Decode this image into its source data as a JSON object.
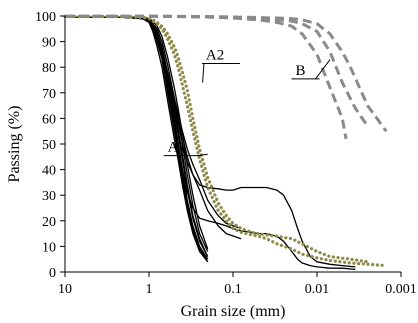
{
  "chart_data": {
    "type": "line",
    "title": "",
    "xlabel": "Grain size (mm)",
    "ylabel": "Passing (%)",
    "x_scale": "log",
    "x_reversed": true,
    "xlim": [
      10,
      0.001
    ],
    "ylim": [
      0,
      100
    ],
    "x_ticks": [
      10,
      1,
      0.1,
      0.01,
      0.001
    ],
    "x_tick_labels": [
      "10",
      "1",
      "0.1",
      "0.01",
      "0.001"
    ],
    "y_ticks": [
      0,
      10,
      20,
      30,
      40,
      50,
      60,
      70,
      80,
      90,
      100
    ],
    "y_tick_labels": [
      "0",
      "10",
      "20",
      "30",
      "40",
      "50",
      "60",
      "70",
      "80",
      "90",
      "100"
    ],
    "grid": false,
    "legend": "none",
    "colors": {
      "a1": "#000000",
      "a2": "#8e8a4a",
      "b": "#8a8a8a"
    },
    "annotations": [
      {
        "text": "A1",
        "x": 0.2,
        "y": 46,
        "tx": 0.6,
        "ty": 47
      },
      {
        "text": "A2",
        "x": 0.23,
        "y": 74,
        "tx": 0.21,
        "ty": 83
      },
      {
        "text": "B",
        "x": 0.007,
        "y": 83,
        "tx": 0.018,
        "ty": 77
      }
    ],
    "series": [
      {
        "group": "A1",
        "style": "solid",
        "x": [
          10,
          2,
          1.2,
          1,
          0.9,
          0.8,
          0.7,
          0.6,
          0.5,
          0.45,
          0.4,
          0.35,
          0.3,
          0.25,
          0.2
        ],
        "y": [
          99.5,
          99.5,
          99,
          98,
          96,
          92,
          85,
          73,
          58,
          50,
          40,
          28,
          18,
          10,
          5
        ]
      },
      {
        "group": "A1",
        "style": "solid",
        "x": [
          10,
          2,
          1.2,
          1,
          0.9,
          0.8,
          0.7,
          0.6,
          0.5,
          0.45,
          0.4,
          0.35,
          0.3,
          0.25,
          0.2
        ],
        "y": [
          99.5,
          99.5,
          99,
          98.5,
          97,
          94,
          88,
          78,
          64,
          56,
          46,
          34,
          22,
          13,
          6
        ]
      },
      {
        "group": "A1",
        "style": "solid",
        "x": [
          10,
          2,
          1.2,
          1,
          0.9,
          0.8,
          0.7,
          0.6,
          0.5,
          0.45,
          0.4,
          0.35,
          0.3,
          0.25,
          0.2
        ],
        "y": [
          99.5,
          99.5,
          99,
          98,
          95,
          90,
          83,
          70,
          55,
          46,
          36,
          25,
          16,
          9,
          5
        ]
      },
      {
        "group": "A1",
        "style": "solid",
        "x": [
          10,
          2,
          1.2,
          1,
          0.9,
          0.8,
          0.7,
          0.6,
          0.5,
          0.45,
          0.4,
          0.35,
          0.3,
          0.25,
          0.2
        ],
        "y": [
          99.5,
          99.5,
          99.5,
          99,
          97,
          95,
          90,
          81,
          68,
          60,
          50,
          38,
          26,
          15,
          8
        ]
      },
      {
        "group": "A1",
        "style": "solid",
        "x": [
          10,
          2,
          1.2,
          1,
          0.9,
          0.8,
          0.7,
          0.6,
          0.5,
          0.45,
          0.4,
          0.35,
          0.3,
          0.25,
          0.2
        ],
        "y": [
          99.5,
          99.5,
          99,
          97.5,
          94,
          88,
          80,
          67,
          52,
          44,
          34,
          24,
          15,
          8,
          4
        ]
      },
      {
        "group": "A1",
        "style": "solid",
        "x": [
          10,
          2,
          1.2,
          1,
          0.9,
          0.8,
          0.7,
          0.6,
          0.5,
          0.45,
          0.4,
          0.35,
          0.3,
          0.25,
          0.2
        ],
        "y": [
          99.5,
          99.5,
          99.5,
          99,
          98,
          96,
          92,
          84,
          72,
          64,
          54,
          42,
          30,
          18,
          9
        ]
      },
      {
        "group": "A1",
        "style": "solid",
        "x": [
          10,
          2,
          1.2,
          1,
          0.9,
          0.8,
          0.7,
          0.6,
          0.5,
          0.45,
          0.4,
          0.35,
          0.3,
          0.25,
          0.2
        ],
        "y": [
          99.5,
          99.5,
          99,
          98,
          96,
          91,
          84,
          72,
          57,
          48,
          38,
          27,
          17,
          9,
          4
        ]
      },
      {
        "group": "A1",
        "style": "solid",
        "x": [
          10,
          2,
          1.2,
          1,
          0.9,
          0.8,
          0.7,
          0.6,
          0.5,
          0.45,
          0.4,
          0.35,
          0.3,
          0.25,
          0.2
        ],
        "y": [
          99.5,
          99.5,
          99,
          98.5,
          97,
          93,
          87,
          76,
          62,
          54,
          44,
          32,
          21,
          12,
          6
        ]
      },
      {
        "group": "A1",
        "style": "solid",
        "x": [
          10,
          2,
          1.2,
          1,
          0.9,
          0.8,
          0.7,
          0.6,
          0.5,
          0.45,
          0.4,
          0.35,
          0.3,
          0.25,
          0.2,
          0.15,
          0.12,
          0.08
        ],
        "y": [
          99.5,
          99.5,
          99,
          98,
          96,
          92,
          86,
          77,
          66,
          60,
          53,
          45,
          38,
          32,
          24,
          18,
          15,
          13
        ]
      },
      {
        "group": "A1",
        "style": "solid",
        "x": [
          10,
          2,
          1.2,
          1,
          0.9,
          0.8,
          0.7,
          0.6,
          0.5,
          0.45,
          0.4,
          0.35,
          0.3,
          0.25,
          0.2,
          0.15,
          0.12,
          0.08
        ],
        "y": [
          99.5,
          99.5,
          99,
          98,
          96,
          92,
          86,
          78,
          68,
          62,
          55,
          48,
          42,
          36,
          28,
          22,
          19,
          17
        ]
      },
      {
        "group": "A1",
        "style": "solid",
        "x": [
          10,
          2,
          1.2,
          1,
          0.9,
          0.8,
          0.7,
          0.6,
          0.5,
          0.4,
          0.35,
          0.3,
          0.25,
          0.2,
          0.15,
          0.12,
          0.1,
          0.08,
          0.06,
          0.05,
          0.04,
          0.03,
          0.025,
          0.02,
          0.017,
          0.015,
          0.012,
          0.01,
          0.007,
          0.005,
          0.0035
        ],
        "y": [
          99.5,
          99.5,
          99,
          98,
          96,
          92,
          86,
          78,
          66,
          50,
          43,
          38,
          34,
          33,
          32.5,
          32,
          32,
          33,
          33,
          33,
          33,
          32,
          30,
          24,
          17,
          12,
          6,
          4,
          3,
          2.5,
          2
        ]
      },
      {
        "group": "A1",
        "style": "solid",
        "x": [
          10,
          2,
          1.2,
          1,
          0.9,
          0.8,
          0.7,
          0.6,
          0.5,
          0.4,
          0.35,
          0.3,
          0.25,
          0.2,
          0.15,
          0.12,
          0.1,
          0.08,
          0.06,
          0.05,
          0.04,
          0.03,
          0.025,
          0.02,
          0.017,
          0.015,
          0.012,
          0.01,
          0.007,
          0.005,
          0.0035
        ],
        "y": [
          99.5,
          99.5,
          99,
          98,
          96,
          92,
          85,
          75,
          60,
          40,
          31,
          25,
          21,
          20,
          19,
          18,
          17,
          16,
          15.5,
          15,
          15,
          14,
          12,
          8,
          5,
          3.5,
          2.5,
          2,
          1.5,
          1.5,
          1
        ]
      },
      {
        "group": "A2",
        "style": "dotted",
        "x": [
          10,
          2,
          1.2,
          1,
          0.9,
          0.8,
          0.7,
          0.6,
          0.5,
          0.45,
          0.4,
          0.35,
          0.3,
          0.25,
          0.2,
          0.15,
          0.12,
          0.1,
          0.08,
          0.06,
          0.05,
          0.04,
          0.03,
          0.02,
          0.015,
          0.01,
          0.007,
          0.004,
          0.0025
        ],
        "y": [
          99.8,
          99.8,
          99.5,
          99,
          98.5,
          97.5,
          96,
          93,
          88,
          84,
          78,
          71,
          60,
          48,
          37,
          27,
          22,
          19,
          17,
          15.5,
          15,
          14.5,
          14,
          13,
          11,
          8,
          6,
          5,
          4
        ]
      },
      {
        "group": "A2",
        "style": "dotted",
        "x": [
          10,
          2,
          1.2,
          1,
          0.9,
          0.8,
          0.7,
          0.6,
          0.5,
          0.45,
          0.4,
          0.35,
          0.3,
          0.25,
          0.2,
          0.15,
          0.12,
          0.1,
          0.08,
          0.06,
          0.05,
          0.04,
          0.03,
          0.02,
          0.015,
          0.01,
          0.007,
          0.004,
          0.0015
        ],
        "y": [
          99.8,
          99.8,
          99.5,
          99,
          98,
          97,
          95,
          91,
          85,
          80,
          73,
          65,
          55,
          44,
          33,
          24,
          20,
          17,
          15.5,
          14.5,
          14,
          13,
          11,
          9,
          7,
          5.5,
          4.5,
          3.5,
          2.5
        ]
      },
      {
        "group": "B",
        "style": "dashed",
        "x": [
          10,
          1,
          0.5,
          0.2,
          0.1,
          0.05,
          0.03,
          0.02,
          0.015,
          0.01,
          0.007,
          0.005,
          0.0045
        ],
        "y": [
          99.9,
          99.9,
          99.8,
          99.6,
          99.2,
          98.5,
          97.5,
          96,
          93,
          85,
          72,
          60,
          52
        ]
      },
      {
        "group": "B",
        "style": "dashed",
        "x": [
          10,
          1,
          0.5,
          0.2,
          0.1,
          0.05,
          0.03,
          0.02,
          0.015,
          0.01,
          0.007,
          0.005,
          0.0035,
          0.0025
        ],
        "y": [
          99.9,
          99.9,
          99.8,
          99.6,
          99.3,
          99,
          98.5,
          98,
          97,
          94,
          86,
          74,
          64,
          57
        ]
      },
      {
        "group": "B",
        "style": "dashed",
        "x": [
          10,
          1,
          0.5,
          0.2,
          0.1,
          0.05,
          0.03,
          0.02,
          0.015,
          0.01,
          0.007,
          0.005,
          0.004,
          0.0025,
          0.0015
        ],
        "y": [
          99.9,
          99.9,
          99.9,
          99.8,
          99.6,
          99.4,
          99.2,
          99,
          98.5,
          97,
          93,
          86,
          80,
          65,
          55
        ]
      }
    ]
  }
}
